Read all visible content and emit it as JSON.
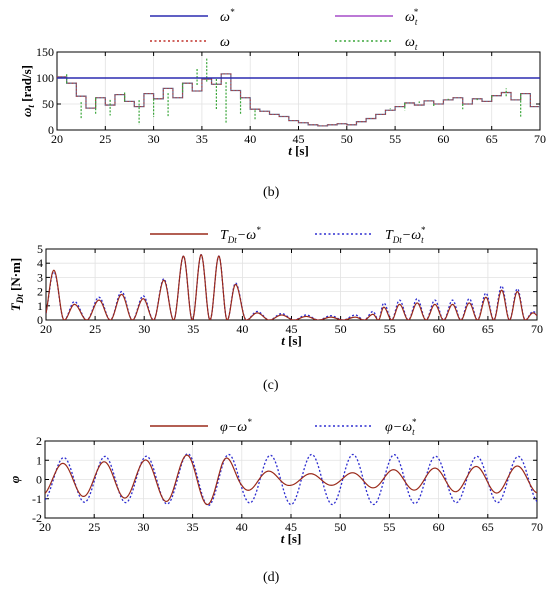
{
  "figure": {
    "panels": [
      "(b)",
      "(c)",
      "(d)"
    ]
  },
  "chart_data": [
    {
      "type": "line",
      "panel": "(b)",
      "xlabel": "t [s]",
      "ylabel_main": "ω",
      "ylabel_sub": "t",
      "ylabel_unit": " [rad/s]",
      "xlim": [
        20,
        70
      ],
      "ylim": [
        0,
        150
      ],
      "xticks": [
        20,
        25,
        30,
        35,
        40,
        45,
        50,
        55,
        60,
        65,
        70
      ],
      "yticks": [
        0,
        50,
        100,
        150
      ],
      "grid": true,
      "legend_position": "top, two rows",
      "legend": [
        {
          "symbol": "ω",
          "sub": "",
          "sup": "*",
          "color": "#2b2bb0",
          "dash": "solid"
        },
        {
          "symbol": "ω",
          "sub": "t",
          "sup": "*",
          "color": "#a64dc8",
          "dash": "solid"
        },
        {
          "symbol": "ω",
          "sub": "",
          "sup": "",
          "color": "#c0302a",
          "dash": "dotted"
        },
        {
          "symbol": "ω",
          "sub": "t",
          "sup": "",
          "color": "#3aa63a",
          "dash": "dotted"
        }
      ],
      "series": [
        {
          "name": "ω*",
          "color": "#2b2bb0",
          "style": "hline",
          "value": 100
        },
        {
          "name": "ωt* (step)",
          "color": "#6a6a8a",
          "style": "step",
          "x": [
            20,
            21,
            22,
            23,
            24,
            25,
            26,
            27,
            28,
            29,
            30,
            31,
            32,
            33,
            34,
            35,
            36,
            37,
            38,
            39,
            40,
            41,
            42,
            43,
            44,
            45,
            46,
            47,
            48,
            49,
            50,
            51,
            52,
            53,
            54,
            55,
            56,
            57,
            58,
            59,
            60,
            61,
            62,
            63,
            64,
            65,
            66,
            67,
            68,
            69
          ],
          "y": [
            102,
            90,
            65,
            42,
            62,
            48,
            68,
            55,
            45,
            70,
            60,
            80,
            62,
            90,
            75,
            98,
            88,
            108,
            76,
            62,
            40,
            36,
            30,
            26,
            18,
            14,
            10,
            8,
            10,
            12,
            10,
            16,
            22,
            30,
            38,
            45,
            52,
            48,
            56,
            50,
            58,
            62,
            50,
            60,
            55,
            66,
            72,
            58,
            70,
            45
          ]
        },
        {
          "name": "ωt (spikes)",
          "color": "#3aa63a",
          "style": "spikes",
          "x": [
            21,
            22.5,
            24,
            25.5,
            27,
            28.5,
            30,
            31.5,
            33,
            34.5,
            35.5,
            36.5,
            37.5,
            39,
            40.5,
            54.5,
            56,
            57.5,
            59,
            60.5,
            62,
            63.5,
            65,
            66.5,
            68
          ],
          "y": [
            108,
            22,
            30,
            28,
            72,
            10,
            25,
            25,
            70,
            120,
            140,
            40,
            12,
            30,
            20,
            40,
            38,
            55,
            45,
            58,
            40,
            60,
            58,
            80,
            25
          ]
        }
      ]
    },
    {
      "type": "line",
      "panel": "(c)",
      "xlabel": "t [s]",
      "ylabel_main": "T",
      "ylabel_sub": "Dt",
      "ylabel_unit": " [N·m]",
      "xlim": [
        20,
        70
      ],
      "ylim": [
        0,
        5
      ],
      "xticks": [
        20,
        25,
        30,
        35,
        40,
        45,
        50,
        55,
        60,
        65,
        70
      ],
      "yticks": [
        0,
        1,
        2,
        3,
        4,
        5
      ],
      "grid": true,
      "legend_position": "top",
      "legend": [
        {
          "symbol": "T",
          "sub": "Dt",
          "mid": "−ω",
          "sup": "*",
          "supsub": "",
          "color": "#9a2a1a",
          "dash": "solid"
        },
        {
          "symbol": "T",
          "sub": "Dt",
          "mid": "−ω",
          "sup": "*",
          "supsub": "t",
          "color": "#2d2dd0",
          "dash": "dotted"
        }
      ],
      "peaks": {
        "x": [
          20.8,
          22.9,
          25.4,
          27.7,
          29.9,
          32.0,
          34.0,
          35.8,
          37.6,
          39.3,
          41.5,
          44.0,
          46.5,
          49.0,
          51.5,
          53.3,
          54.4,
          56.0,
          57.8,
          59.6,
          61.4,
          63.1,
          64.8,
          66.4,
          68.0,
          69.6
        ],
        "y_omega": [
          3.5,
          1.1,
          1.4,
          1.8,
          1.5,
          2.8,
          4.5,
          4.6,
          4.5,
          2.5,
          0.5,
          0.35,
          0.25,
          0.2,
          0.2,
          0.4,
          0.9,
          1.1,
          1.2,
          1.1,
          1.1,
          1.2,
          1.6,
          2.1,
          2.0,
          0.5
        ],
        "y_omega_t": [
          3.4,
          1.3,
          1.6,
          2.0,
          1.7,
          2.9,
          4.5,
          4.6,
          4.5,
          2.6,
          0.6,
          0.45,
          0.35,
          0.3,
          0.35,
          0.6,
          1.2,
          1.4,
          1.5,
          1.4,
          1.4,
          1.5,
          1.9,
          2.4,
          2.2,
          0.6
        ]
      }
    },
    {
      "type": "line",
      "panel": "(d)",
      "xlabel": "t [s]",
      "ylabel_main": "φ",
      "xlim": [
        20,
        70
      ],
      "ylim": [
        -2,
        2
      ],
      "xticks": [
        20,
        25,
        30,
        35,
        40,
        45,
        50,
        55,
        60,
        65,
        70
      ],
      "yticks": [
        -2,
        -1,
        0,
        1,
        2
      ],
      "grid": true,
      "legend_position": "top",
      "legend": [
        {
          "symbol": "φ",
          "mid": "−ω",
          "sup": "*",
          "supsub": "",
          "color": "#9a2a1a",
          "dash": "solid"
        },
        {
          "symbol": "φ",
          "mid": "−ω",
          "sup": "*",
          "supsub": "t",
          "color": "#2d2dd0",
          "dash": "dotted"
        }
      ],
      "oscillation": {
        "period_s": 4.2,
        "phase_t0": 21.8,
        "amp_omega": {
          "x": [
            20,
            25,
            30,
            35,
            38,
            40,
            45,
            50,
            55,
            60,
            65,
            70
          ],
          "y": [
            0.8,
            0.9,
            1.0,
            1.3,
            1.3,
            0.6,
            0.3,
            0.3,
            0.5,
            0.6,
            0.7,
            0.7
          ]
        },
        "amp_omega_t": {
          "x": [
            20,
            25,
            30,
            35,
            38,
            40,
            45,
            50,
            55,
            60,
            65,
            70
          ],
          "y": [
            1.1,
            1.2,
            1.2,
            1.35,
            1.35,
            1.2,
            1.3,
            1.3,
            1.3,
            1.2,
            1.2,
            1.2
          ]
        }
      }
    }
  ]
}
